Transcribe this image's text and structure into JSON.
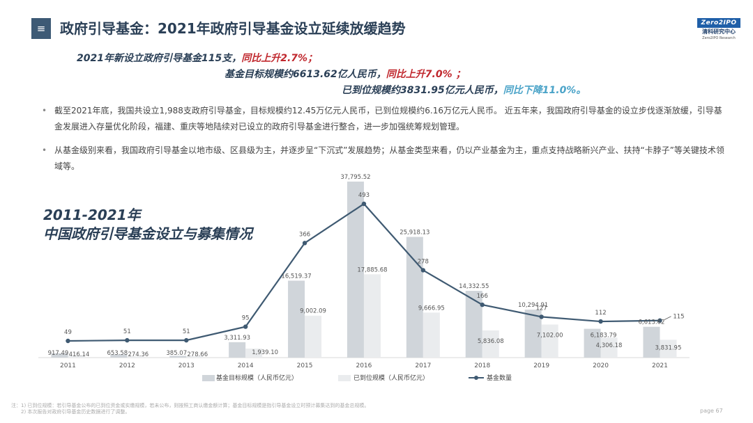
{
  "header": {
    "menu_icon": "≡",
    "title": "政府引导基金：2021年政府引导基金设立延续放缓趋势"
  },
  "logo": {
    "badge": "Zero2IPO",
    "cn": "清科研究中心",
    "en": "Zero2IPO Research"
  },
  "highlights": {
    "line1_main": "2021年新设立政府引导基金115支，",
    "line1_accent": "同比上升2.7%；",
    "line2_main": "基金目标规模约6613.62亿人民币，",
    "line2_accent": "同比上升7.0%  ；",
    "line3_main": "已到位规模约3831.95亿元人民币，",
    "line3_accent": "同比下降11.0%。"
  },
  "bullets": [
    {
      "dot": "•",
      "text": "截至2021年底，我国共设立1,988支政府引导基金，目标规模约12.45万亿元人民币，已到位规模约6.16万亿元人民币。 近五年来，我国政府引导基金的设立步伐逐渐放缓，引导基金发展进入存量优化阶段，福建、重庆等地陆续对已设立的政府引导基金进行整合，进一步加强统筹规划管理。"
    },
    {
      "dot": "•",
      "text": "从基金级别来看，我国政府引导基金以地市级、区县级为主，并逐步呈“下沉式”发展趋势；从基金类型来看，仍以产业基金为主，重点支持战略新兴产业、扶持“卡脖子”等关键技术领域等。"
    }
  ],
  "chart_title_line1": "2011-2021年",
  "chart_title_line2": "中国政府引导基金设立与募集情况",
  "chart_data": {
    "type": "bar",
    "categories": [
      "2011",
      "2012",
      "2013",
      "2014",
      "2015",
      "2016",
      "2017",
      "2018",
      "2019",
      "2020",
      "2021"
    ],
    "series": [
      {
        "name": "基金目标规模（人民币亿元）",
        "type": "bar",
        "color": "#d0d5da",
        "values": [
          917.49,
          653.58,
          385.07,
          3311.93,
          16519.37,
          37795.52,
          25918.13,
          14332.55,
          10294.91,
          6183.79,
          6613.62
        ],
        "labels": [
          "917.49",
          "653.58",
          "385.07",
          "3,311.93",
          "16,519.37",
          "37,795.52",
          "25,918.13",
          "14,332.55",
          "10,294.91",
          "6,183.79",
          "6,613.62"
        ]
      },
      {
        "name": "已到位规模（人民币亿元）",
        "type": "bar",
        "color": "#eaecee",
        "values": [
          416.14,
          274.36,
          278.66,
          1939.1,
          9002.09,
          17885.68,
          9666.95,
          5836.08,
          7102.0,
          4306.18,
          3831.95
        ],
        "labels": [
          "416.14",
          "274.36",
          "278.66",
          "1,939.10",
          "9,002.09",
          "17,885.68",
          "9,666.95",
          "5,836.08",
          "7,102.00",
          "4,306.18",
          "3,831.95"
        ]
      },
      {
        "name": "基金数量",
        "type": "line",
        "color": "#3f5a72",
        "values": [
          49,
          51,
          51,
          95,
          366,
          493,
          278,
          166,
          127,
          112,
          115
        ],
        "labels": [
          "49",
          "51",
          "51",
          "95",
          "366",
          "493",
          "278",
          "166",
          "127",
          "112",
          "115"
        ]
      }
    ],
    "legend_position": "bottom"
  },
  "footnote": {
    "line1": "注：1) 已到位规模：若引导基金公布的已到位资金或实缴规模，若未公布，则按照工商认缴金额计算；基金目标规模是指引导基金设立时预计募集达到的基金总规模。",
    "line2": "2) 本次报告对政府引导基金历史数据进行了调整。"
  },
  "page_number": "page  67"
}
